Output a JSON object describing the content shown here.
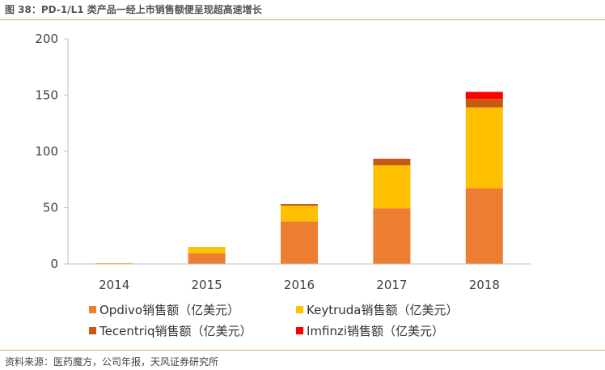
{
  "header": {
    "title": "图 38：PD-1/L1 类产品一经上市销售额便呈现超高速增长"
  },
  "footer": {
    "source": "资料来源：医药魔方，公司年报，天风证券研究所"
  },
  "chart_data": {
    "type": "bar",
    "stacked": true,
    "categories": [
      "2014",
      "2015",
      "2016",
      "2017",
      "2018"
    ],
    "series": [
      {
        "name": "Opdivo销售额（亿美元）",
        "color": "#ED7D31",
        "values": [
          0.2,
          9.4,
          37.7,
          49.5,
          67.4
        ]
      },
      {
        "name": "Keytruda销售额（亿美元）",
        "color": "#FFC000",
        "values": [
          0.6,
          5.7,
          14.0,
          38.1,
          71.7
        ]
      },
      {
        "name": "Tecentriq销售额（亿美元）",
        "color": "#C55A11",
        "values": [
          0,
          0,
          1.5,
          5.6,
          7.5
        ]
      },
      {
        "name": "Imfinzi销售额（亿美元）",
        "color": "#FF0000",
        "values": [
          0,
          0,
          0,
          0.2,
          6.3
        ]
      }
    ],
    "ylim": [
      0,
      200
    ],
    "yticks": [
      "0",
      "50",
      "100",
      "150",
      "200"
    ],
    "grid": false,
    "legend_position": "bottom"
  }
}
